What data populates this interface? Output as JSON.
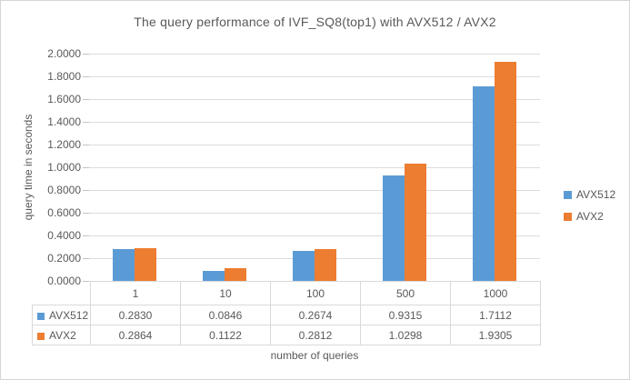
{
  "chart_data": {
    "type": "bar",
    "title": "The query performance of IVF_SQ8(top1) with AVX512 / AVX2",
    "xlabel": "number of queries",
    "ylabel": "query time in seconds",
    "categories": [
      "1",
      "10",
      "100",
      "500",
      "1000"
    ],
    "series": [
      {
        "name": "AVX512",
        "color": "#5b9bd5",
        "values": [
          0.283,
          0.0846,
          0.2674,
          0.9315,
          1.7112
        ]
      },
      {
        "name": "AVX2",
        "color": "#ed7d31",
        "values": [
          0.2864,
          0.1122,
          0.2812,
          1.0298,
          1.9305
        ]
      }
    ],
    "ylim": [
      0.0,
      2.0
    ],
    "ytick_step": 0.2,
    "ytick_decimals": 4,
    "value_decimals": 4,
    "grid": true,
    "legend_position": "right",
    "data_table_with_legend_keys": true,
    "colors": {
      "text": "#595959",
      "gridline": "#dcdcdc",
      "table_border": "#d9d9d9",
      "frame_border": "#d6d6d6"
    }
  }
}
